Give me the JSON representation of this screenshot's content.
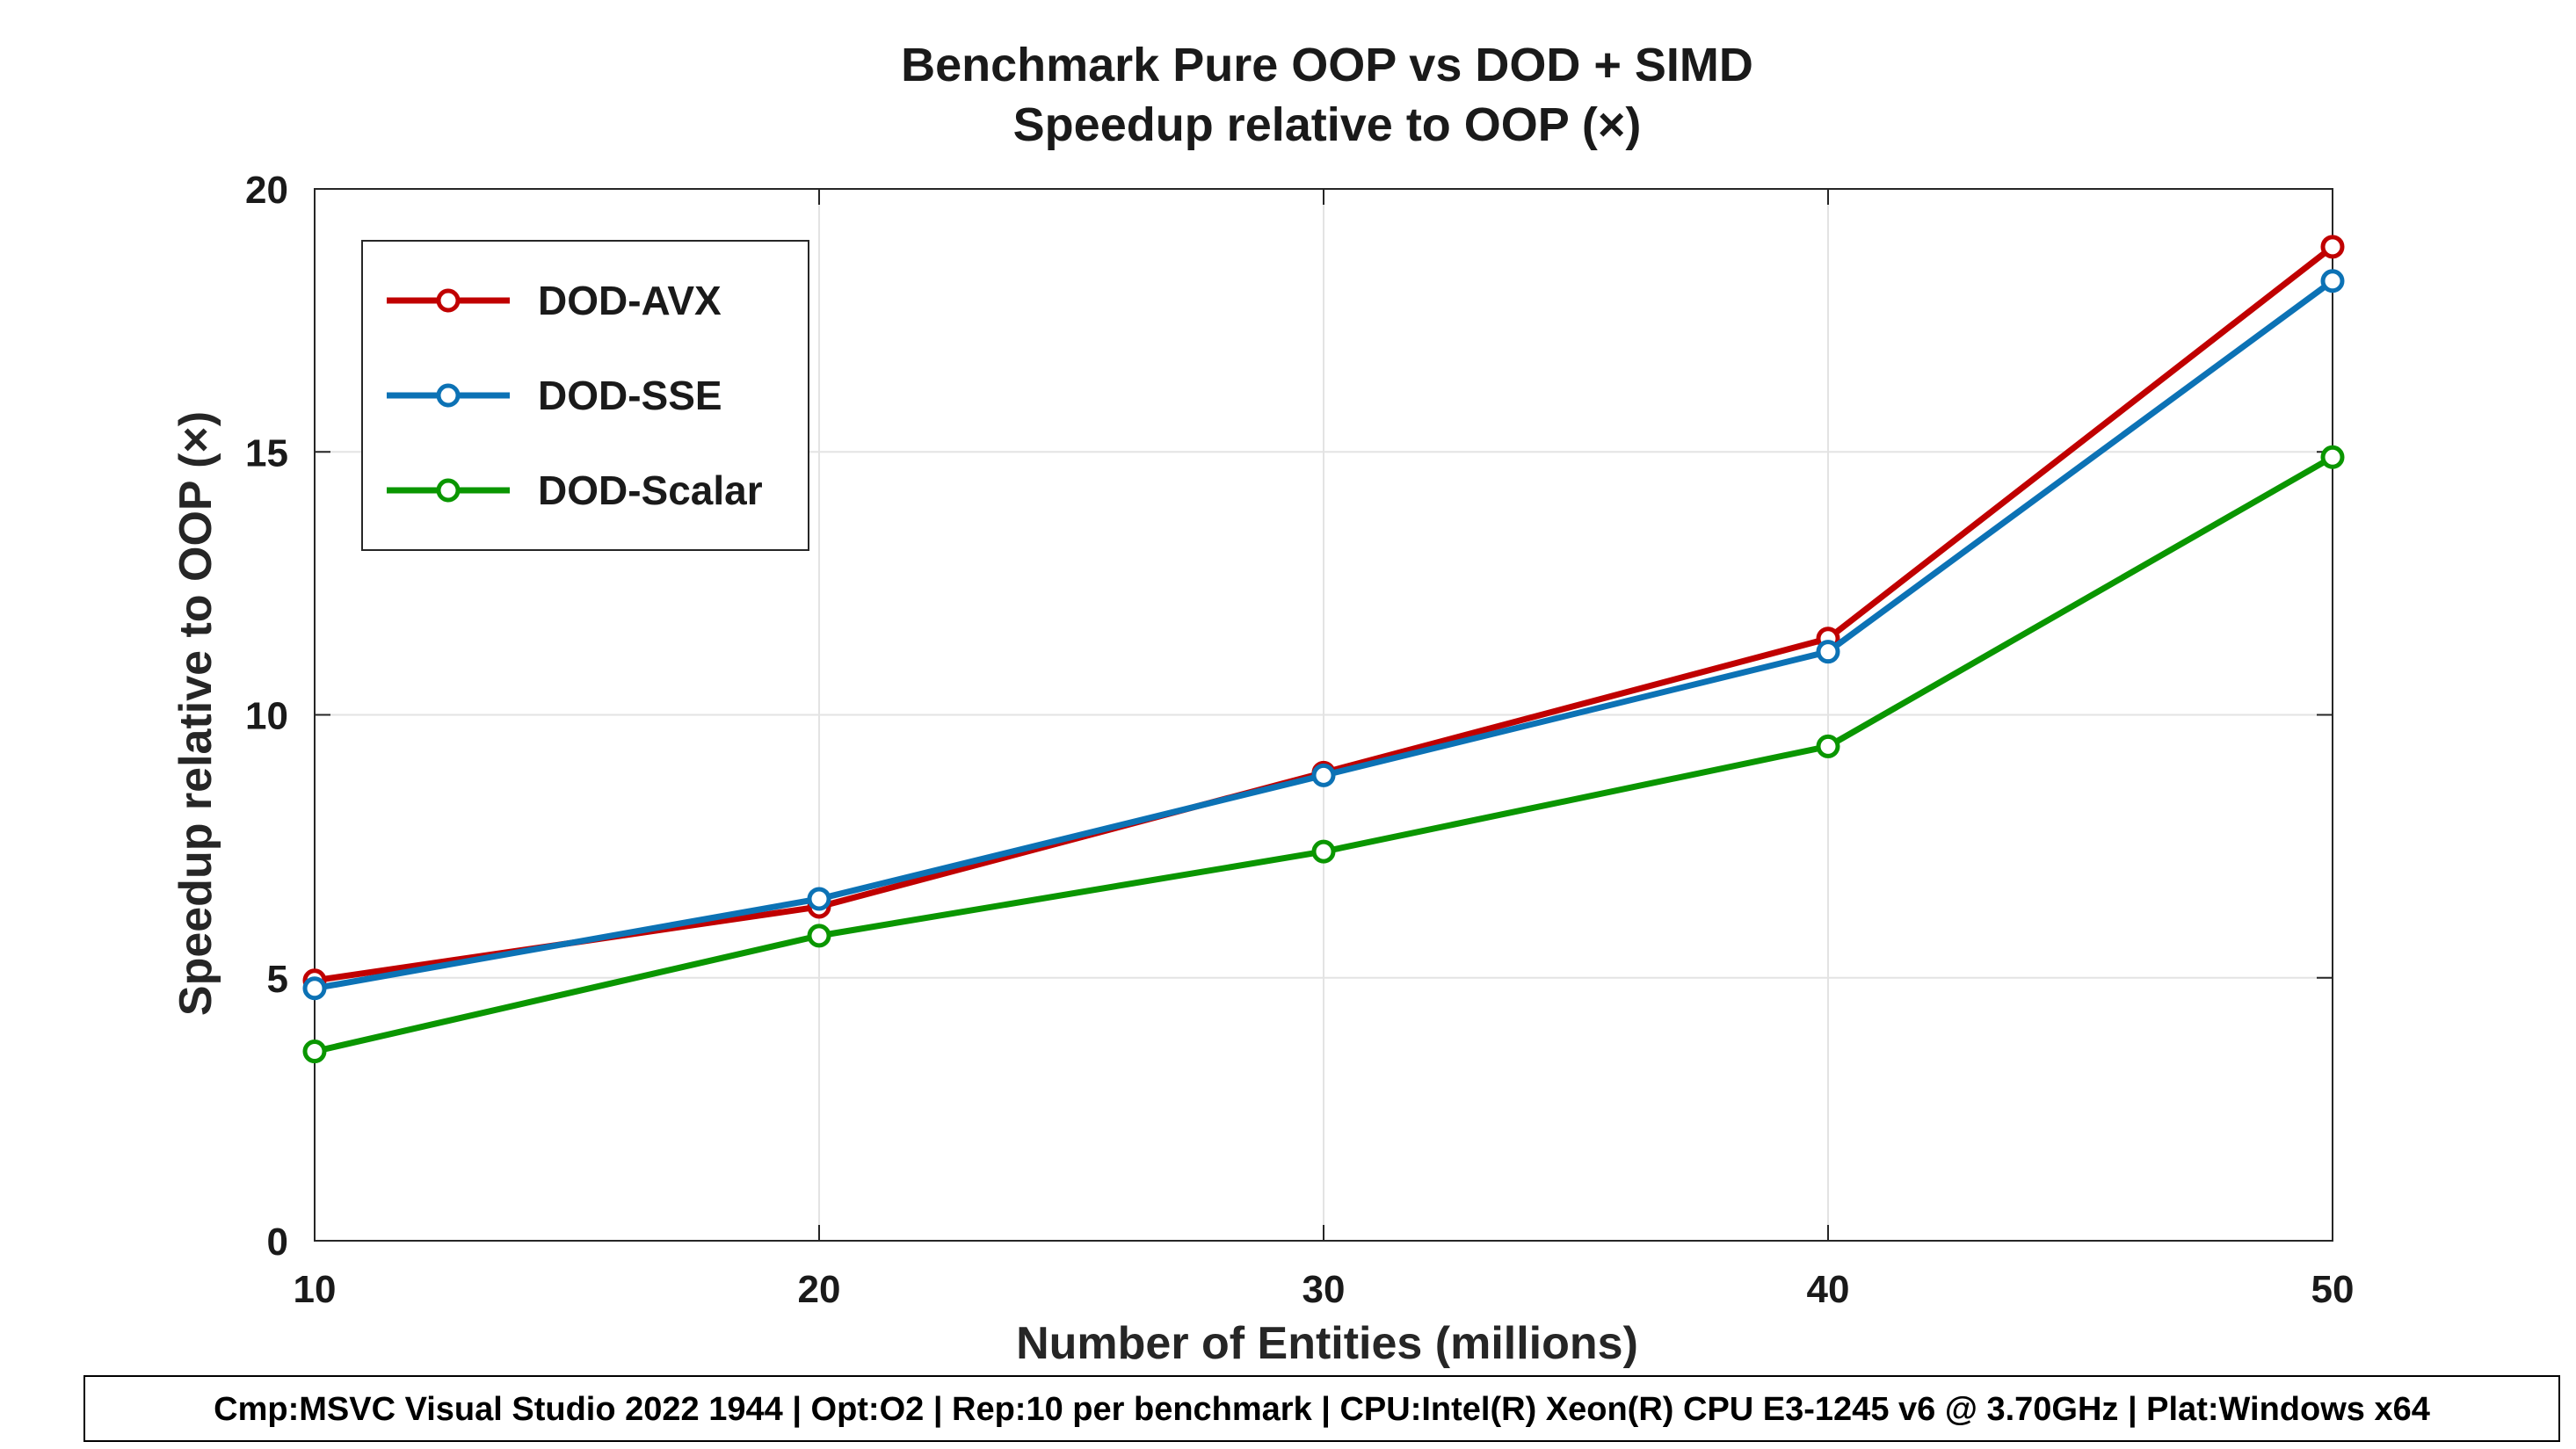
{
  "chart_data": {
    "type": "line",
    "title": "Benchmark Pure OOP vs DOD + SIMD",
    "subtitle": "Speedup relative to OOP (×)",
    "xlabel": "Number of Entities (millions)",
    "ylabel": "Speedup relative to OOP (×)",
    "x": [
      10,
      20,
      30,
      40,
      50
    ],
    "xticks": [
      "10",
      "20",
      "30",
      "40",
      "50"
    ],
    "yticks": [
      "0",
      "5",
      "10",
      "15",
      "20"
    ],
    "xlim": [
      10,
      50
    ],
    "ylim": [
      0,
      20
    ],
    "grid": true,
    "legend_position": "top-left",
    "series": [
      {
        "name": "DOD-AVX",
        "color": "#c00000",
        "values": [
          4.95,
          6.35,
          8.9,
          11.45,
          18.9
        ]
      },
      {
        "name": "DOD-SSE",
        "color": "#0c72b5",
        "values": [
          4.8,
          6.5,
          8.85,
          11.2,
          18.25
        ]
      },
      {
        "name": "DOD-Scalar",
        "color": "#0a9600",
        "values": [
          3.6,
          5.8,
          7.4,
          9.4,
          14.9
        ]
      }
    ],
    "footer": "Cmp:MSVC Visual Studio 2022 1944 | Opt:O2 | Rep:10 per benchmark | CPU:Intel(R) Xeon(R) CPU E3-1245 v6 @ 3.70GHz | Plat:Windows x64"
  }
}
